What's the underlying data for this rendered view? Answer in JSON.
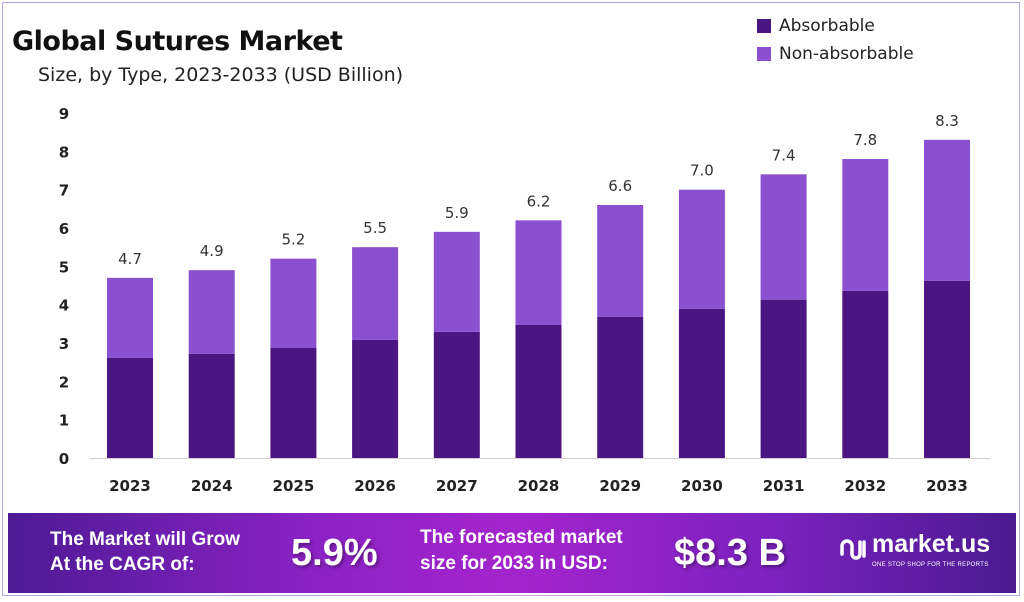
{
  "title": "Global Sutures Market",
  "subtitle": "Size, by Type, 2023-2033 (USD Billion)",
  "legend": [
    {
      "label": "Absorbable",
      "color": "#4b1582"
    },
    {
      "label": "Non-absorbable",
      "color": "#8b50cf"
    }
  ],
  "chart_data": {
    "type": "bar",
    "stacked": true,
    "categories": [
      "2023",
      "2024",
      "2025",
      "2026",
      "2027",
      "2028",
      "2029",
      "2030",
      "2031",
      "2032",
      "2033"
    ],
    "series": [
      {
        "name": "Absorbable",
        "values": [
          2.61,
          2.72,
          2.87,
          3.08,
          3.29,
          3.47,
          3.68,
          3.89,
          4.13,
          4.36,
          4.62
        ]
      },
      {
        "name": "Non-absorbable",
        "values": [
          2.09,
          2.18,
          2.33,
          2.42,
          2.61,
          2.73,
          2.92,
          3.11,
          3.27,
          3.44,
          3.68
        ]
      }
    ],
    "totals": [
      "4.7",
      "4.9",
      "5.2",
      "5.5",
      "5.9",
      "6.2",
      "6.6",
      "7.0",
      "7.4",
      "7.8",
      "8.3"
    ],
    "ylim": [
      0,
      9
    ],
    "yticks": [
      "0",
      "1",
      "2",
      "3",
      "4",
      "5",
      "6",
      "7",
      "8",
      "9"
    ],
    "grid": false,
    "legend_position": "top-right"
  },
  "footer": {
    "cagr_text_1": "The Market will Grow",
    "cagr_text_2": "At the CAGR of:",
    "cagr_value": "5.9%",
    "forecast_text_1": "The forecasted market",
    "forecast_text_2": "size for 2033 in USD:",
    "forecast_value": "$8.3 B",
    "logo_name": "market.us",
    "logo_tagline": "ONE STOP SHOP FOR THE REPORTS"
  }
}
